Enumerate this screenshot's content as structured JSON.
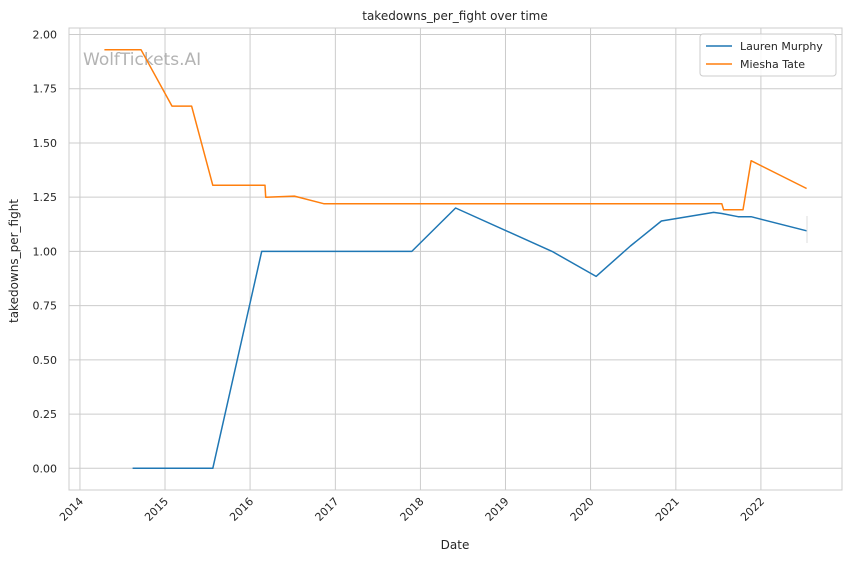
{
  "chart_data": {
    "type": "line",
    "title": "takedowns_per_fight over time",
    "xlabel": "Date",
    "ylabel": "takedowns_per_fight",
    "watermark": "WolfTickets.AI",
    "xlim": [
      "2013-11-15",
      "2022-12-15"
    ],
    "ylim": [
      -0.1,
      2.03
    ],
    "x_ticks": [
      "2014",
      "2015",
      "2016",
      "2017",
      "2018",
      "2019",
      "2020",
      "2021",
      "2022"
    ],
    "y_ticks": [
      "0.00",
      "0.25",
      "0.50",
      "0.75",
      "1.00",
      "1.25",
      "1.50",
      "1.75",
      "2.00"
    ],
    "grid": true,
    "legend_position": "top-right",
    "series": [
      {
        "name": "Lauren Murphy",
        "color": "#1f77b4",
        "points": [
          [
            "2014-08-15",
            0.0
          ],
          [
            "2015-07-25",
            0.0
          ],
          [
            "2016-02-20",
            1.0
          ],
          [
            "2016-07-08",
            1.0
          ],
          [
            "2016-07-10",
            1.0
          ],
          [
            "2017-11-25",
            1.0
          ],
          [
            "2018-06-01",
            1.2
          ],
          [
            "2019-07-20",
            1.0
          ],
          [
            "2020-01-25",
            0.885
          ],
          [
            "2020-06-20",
            1.025
          ],
          [
            "2020-10-31",
            1.14
          ],
          [
            "2021-06-12",
            1.18
          ],
          [
            "2021-07-17",
            1.175
          ],
          [
            "2021-09-25",
            1.16
          ],
          [
            "2021-11-20",
            1.16
          ],
          [
            "2022-07-16",
            1.095
          ]
        ]
      },
      {
        "name": "Miesha Tate",
        "color": "#ff7f0e",
        "points": [
          [
            "2014-04-16",
            1.93
          ],
          [
            "2014-09-20",
            1.93
          ],
          [
            "2015-01-31",
            1.67
          ],
          [
            "2015-04-25",
            1.67
          ],
          [
            "2015-07-25",
            1.305
          ],
          [
            "2016-03-05",
            1.305
          ],
          [
            "2016-03-08",
            1.25
          ],
          [
            "2016-07-09",
            1.255
          ],
          [
            "2016-11-12",
            1.22
          ],
          [
            "2021-07-17",
            1.22
          ],
          [
            "2021-07-25",
            1.192
          ],
          [
            "2021-10-16",
            1.192
          ],
          [
            "2021-11-20",
            1.418
          ],
          [
            "2022-07-16",
            1.29
          ]
        ]
      }
    ]
  }
}
